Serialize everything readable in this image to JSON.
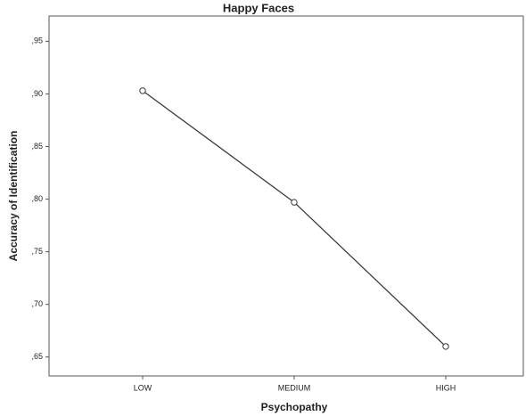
{
  "chart_data": {
    "type": "line",
    "title": "Happy Faces",
    "x_label": "Psychopathy",
    "y_label": "Accuracy of Identification",
    "categories": [
      "LOW",
      "MEDIUM",
      "HIGH"
    ],
    "values": [
      0.903,
      0.797,
      0.66
    ],
    "color": "#3a3a3a",
    "ylim": [
      0.632,
      0.974
    ],
    "yticks": [
      {
        "value": 0.65,
        "label": ",65"
      },
      {
        "value": 0.7,
        "label": ",70"
      },
      {
        "value": 0.75,
        "label": ",75"
      },
      {
        "value": 0.8,
        "label": ",80"
      },
      {
        "value": 0.85,
        "label": ",85"
      },
      {
        "value": 0.9,
        "label": ",90"
      },
      {
        "value": 0.95,
        "label": ",95"
      }
    ],
    "grid": false
  }
}
